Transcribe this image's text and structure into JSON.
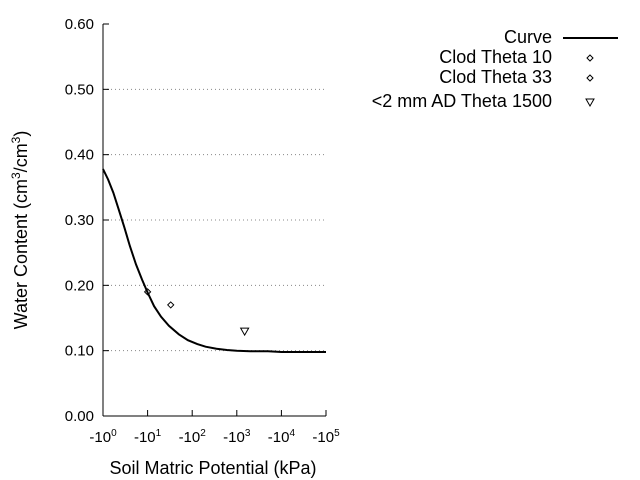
{
  "chart_data": {
    "type": "line",
    "title": "",
    "xlabel": "Soil Matric Potential (kPa)",
    "ylabel": "Water Content (cm³/cm³)",
    "ylabel_parts": [
      "Water Content (cm",
      "3",
      "/cm",
      "3",
      ")"
    ],
    "x_scale": "log",
    "x_axis_label_prefix": "-10",
    "x_ticks": [
      {
        "value": 1,
        "exp": "0"
      },
      {
        "value": 10,
        "exp": "1"
      },
      {
        "value": 100,
        "exp": "2"
      },
      {
        "value": 1000,
        "exp": "3"
      },
      {
        "value": 10000,
        "exp": "4"
      },
      {
        "value": 100000,
        "exp": "5"
      }
    ],
    "xlim": [
      1,
      100000
    ],
    "ylim": [
      0,
      0.6
    ],
    "y_ticks": [
      {
        "value": 0,
        "label": "0.00"
      },
      {
        "value": 0.1,
        "label": "0.10"
      },
      {
        "value": 0.2,
        "label": "0.20"
      },
      {
        "value": 0.3,
        "label": "0.30"
      },
      {
        "value": 0.4,
        "label": "0.40"
      },
      {
        "value": 0.5,
        "label": "0.50"
      },
      {
        "value": 0.6,
        "label": "0.60"
      }
    ],
    "grid": {
      "horizontal": true,
      "style": "dotted"
    },
    "legend_position": "top-right",
    "series": [
      {
        "name": "Curve",
        "kind": "line",
        "x": [
          1,
          1.3,
          1.7,
          2.2,
          3,
          4,
          5.5,
          7.5,
          10,
          14,
          20,
          30,
          50,
          80,
          130,
          200,
          350,
          600,
          1000,
          2000,
          5000,
          10000,
          30000,
          100000
        ],
        "y": [
          0.378,
          0.362,
          0.342,
          0.318,
          0.289,
          0.26,
          0.232,
          0.209,
          0.189,
          0.168,
          0.152,
          0.138,
          0.125,
          0.116,
          0.11,
          0.106,
          0.103,
          0.101,
          0.1,
          0.099,
          0.099,
          0.098,
          0.098,
          0.098
        ]
      },
      {
        "name": "Clod Theta 10",
        "kind": "marker",
        "marker": "diamond",
        "x": [
          10
        ],
        "y": [
          0.19
        ]
      },
      {
        "name": "Clod Theta 33",
        "kind": "marker",
        "marker": "diamond",
        "x": [
          33
        ],
        "y": [
          0.17
        ]
      },
      {
        "name": "<2 mm AD Theta 1500",
        "kind": "marker",
        "marker": "triangle-down",
        "x": [
          1500
        ],
        "y": [
          0.13
        ]
      }
    ]
  }
}
